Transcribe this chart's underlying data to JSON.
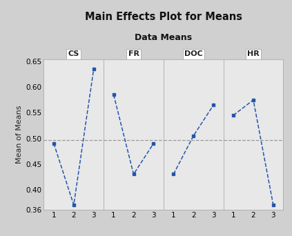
{
  "title": "Main Effects Plot for Means",
  "subtitle": "Data Means",
  "ylabel": "Mean of Means",
  "panels": [
    "CS",
    "FR",
    "DOC",
    "HR"
  ],
  "x_labels": [
    1,
    2,
    3
  ],
  "series": {
    "CS": [
      0.49,
      0.37,
      0.635
    ],
    "FR": [
      0.585,
      0.43,
      0.49
    ],
    "DOC": [
      0.43,
      0.505,
      0.565
    ],
    "HR": [
      0.545,
      0.575,
      0.37
    ]
  },
  "overall_mean": 0.497,
  "ylim": [
    0.36,
    0.655
  ],
  "yticks": [
    0.36,
    0.4,
    0.45,
    0.5,
    0.55,
    0.6,
    0.65
  ],
  "ytick_labels": [
    "0.36",
    "0.40",
    "0.45",
    "0.50",
    "0.55",
    "0.60",
    "0.65"
  ],
  "line_color": "#2255aa",
  "mean_line_color": "#999999",
  "panel_bg": "#e8e8e8",
  "outer_bg": "#d0d0d0",
  "title_fontsize": 10.5,
  "subtitle_fontsize": 9,
  "panel_label_fontsize": 8,
  "ylabel_fontsize": 8,
  "tick_fontsize": 7.5
}
